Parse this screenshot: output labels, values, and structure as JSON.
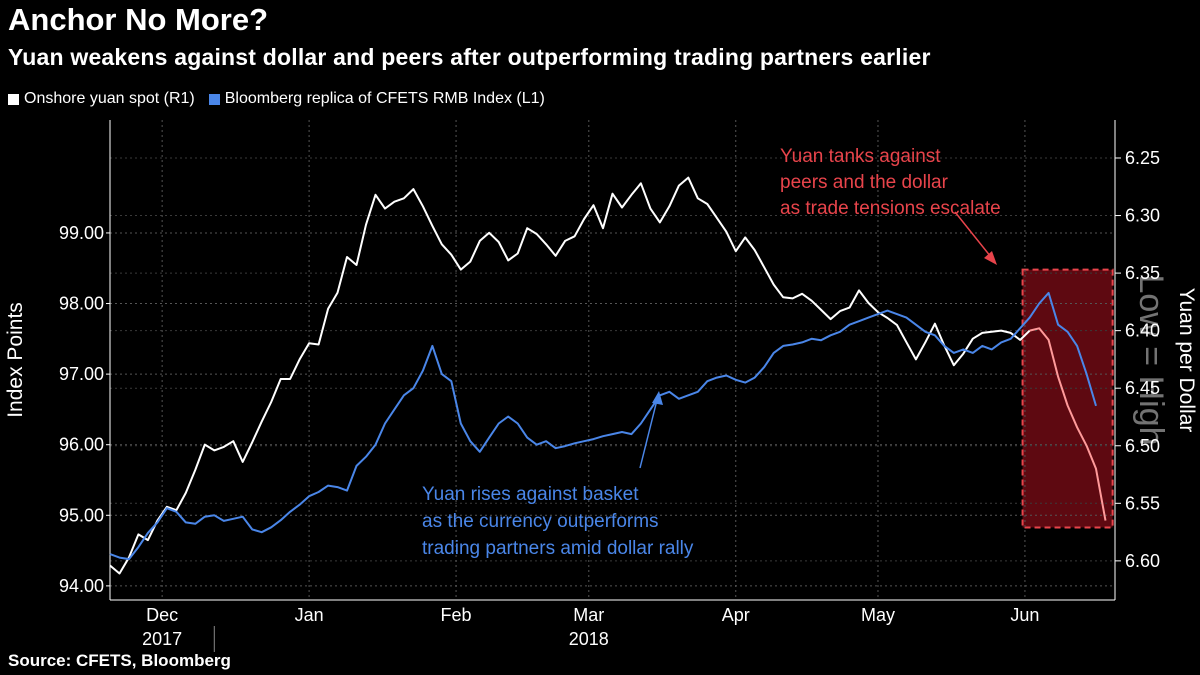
{
  "header": {
    "title": "Anchor No More?",
    "subtitle": "Yuan weakens against dollar and peers after outperforming trading partners earlier"
  },
  "legend": {
    "items": [
      {
        "label": "Onshore yuan spot (R1)",
        "color": "#ffffff"
      },
      {
        "label": "Bloomberg replica of CFETS RMB Index (L1)",
        "color": "#4a86e8"
      }
    ]
  },
  "footer": {
    "source": "Source: CFETS, Bloomberg"
  },
  "chart_data": {
    "type": "line",
    "title": "Anchor No More?",
    "subtitle": "Yuan weakens against dollar and peers after outperforming trading partners earlier",
    "ylabel_left": "Index Points",
    "ylabel_right": "Yuan per Dollar",
    "y2_note": "Low = High",
    "ylim_left": [
      93.8,
      100.6
    ],
    "yticks_left": [
      "94.00",
      "95.00",
      "96.00",
      "97.00",
      "98.00",
      "99.00"
    ],
    "ylim_right": [
      6.634,
      6.217
    ],
    "yticks_right": [
      "6.25",
      "6.30",
      "6.35",
      "6.40",
      "6.45",
      "6.50",
      "6.55",
      "6.60"
    ],
    "month_labels": [
      "Dec",
      "Jan",
      "Feb",
      "Mar",
      "Apr",
      "May",
      "Jun"
    ],
    "year_labels": [
      "2017",
      "2018"
    ],
    "x_unit": "days since 2017-11-20",
    "month_positions": [
      11,
      42,
      73,
      101,
      132,
      162,
      193
    ],
    "year_label_positions": [
      11,
      101
    ],
    "xlim": [
      0,
      212
    ],
    "series": [
      {
        "name": "Onshore yuan spot (R1)",
        "axis": "right",
        "color": "#ffffff",
        "x": [
          0,
          2,
          4,
          6,
          8,
          10,
          12,
          14,
          16,
          18,
          20,
          22,
          24,
          26,
          28,
          30,
          32,
          34,
          36,
          38,
          40,
          42,
          44,
          46,
          48,
          50,
          52,
          54,
          56,
          58,
          60,
          62,
          64,
          66,
          68,
          70,
          72,
          74,
          76,
          78,
          80,
          82,
          84,
          86,
          88,
          90,
          92,
          94,
          96,
          98,
          100,
          102,
          104,
          106,
          108,
          110,
          112,
          114,
          116,
          118,
          120,
          122,
          124,
          126,
          128,
          130,
          132,
          134,
          136,
          138,
          140,
          142,
          144,
          146,
          148,
          150,
          152,
          154,
          156,
          158,
          160,
          162,
          164,
          166,
          168,
          170,
          172,
          174,
          176,
          178,
          180,
          182,
          184,
          186,
          188,
          190,
          192,
          194
        ],
        "values": [
          6.604,
          6.611,
          6.597,
          6.577,
          6.582,
          6.565,
          6.553,
          6.556,
          6.541,
          6.521,
          6.499,
          6.504,
          6.501,
          6.496,
          6.514,
          6.497,
          6.479,
          6.462,
          6.442,
          6.442,
          6.425,
          6.411,
          6.412,
          6.381,
          6.367,
          6.336,
          6.343,
          6.308,
          6.282,
          6.294,
          6.288,
          6.285,
          6.277,
          6.292,
          6.309,
          6.325,
          6.334,
          6.347,
          6.34,
          6.322,
          6.315,
          6.323,
          6.339,
          6.333,
          6.311,
          6.316,
          6.325,
          6.335,
          6.322,
          6.318,
          6.303,
          6.291,
          6.311,
          6.281,
          6.293,
          6.282,
          6.272,
          6.294,
          6.306,
          6.292,
          6.274,
          6.267,
          6.285,
          6.29,
          6.302,
          6.314,
          6.331,
          6.319,
          6.33,
          6.345,
          6.36,
          6.371,
          6.372,
          6.368,
          6.374,
          6.382,
          6.39,
          6.383,
          6.38,
          6.365,
          6.376,
          6.384,
          6.389,
          6.395,
          6.41,
          6.425,
          6.41,
          6.394,
          6.413,
          6.43,
          6.42,
          6.407,
          6.402,
          6.401,
          6.4,
          6.402,
          6.408,
          6.4
        ]
      },
      {
        "name": "Bloomberg replica of CFETS RMB Index (L1)",
        "axis": "left",
        "color": "#4a86e8",
        "x": [
          0,
          2,
          4,
          6,
          8,
          10,
          12,
          14,
          16,
          18,
          20,
          22,
          24,
          26,
          28,
          30,
          32,
          34,
          36,
          38,
          40,
          42,
          44,
          46,
          48,
          50,
          52,
          54,
          56,
          58,
          60,
          62,
          64,
          66,
          68,
          70,
          72,
          74,
          76,
          78,
          80,
          82,
          84,
          86,
          88,
          90,
          92,
          94,
          96,
          98,
          100,
          102,
          104,
          106,
          108,
          110,
          112,
          114,
          116,
          118,
          120,
          122,
          124,
          126,
          128,
          130,
          132,
          134,
          136,
          138,
          140,
          142,
          144,
          146,
          148,
          150,
          152,
          154,
          156,
          158,
          160,
          162,
          164,
          166,
          168,
          170,
          172,
          174,
          176,
          178,
          180,
          182,
          184,
          186,
          188,
          190,
          192,
          194,
          196,
          198,
          200,
          202,
          204,
          206,
          208
        ],
        "values": [
          94.45,
          94.4,
          94.38,
          94.55,
          94.75,
          94.9,
          95.1,
          95.05,
          94.9,
          94.88,
          94.98,
          95.0,
          94.92,
          94.95,
          94.98,
          94.8,
          94.76,
          94.83,
          94.93,
          95.05,
          95.15,
          95.27,
          95.33,
          95.42,
          95.4,
          95.35,
          95.7,
          95.83,
          96.0,
          96.3,
          96.5,
          96.7,
          96.8,
          97.05,
          97.4,
          97.0,
          96.9,
          96.3,
          96.05,
          95.9,
          96.1,
          96.3,
          96.4,
          96.3,
          96.1,
          96.0,
          96.05,
          95.95,
          95.98,
          96.02,
          96.05,
          96.08,
          96.12,
          96.15,
          96.18,
          96.15,
          96.3,
          96.5,
          96.7,
          96.75,
          96.65,
          96.7,
          96.75,
          96.9,
          96.95,
          96.98,
          96.92,
          96.88,
          96.95,
          97.1,
          97.3,
          97.4,
          97.42,
          97.45,
          97.5,
          97.48,
          97.55,
          97.6,
          97.7,
          97.75,
          97.8,
          97.85,
          97.9,
          97.85,
          97.8,
          97.7,
          97.6,
          97.55,
          97.4,
          97.3,
          97.35,
          97.3,
          97.4,
          97.35,
          97.45,
          97.5,
          97.65,
          97.8,
          98.0,
          98.15,
          97.7,
          97.6,
          97.4,
          97.0,
          96.55
        ]
      },
      {
        "name": "Onshore yuan spot (highlighted)",
        "axis": "right",
        "color": "#ff9a9a",
        "x": [
          194,
          196,
          198,
          200,
          202,
          204,
          206,
          208,
          210
        ],
        "values": [
          6.4,
          6.398,
          6.408,
          6.44,
          6.465,
          6.484,
          6.5,
          6.52,
          6.565
        ]
      }
    ],
    "annotations": [
      {
        "text": "Yuan tanks against\npeers and the dollar\nas trade tensions escalate",
        "color": "#e8444b"
      },
      {
        "text": "Yuan rises against basket\nas the currency outperforms\ntrading partners amid dollar rally",
        "color": "#4a86e8"
      }
    ]
  }
}
